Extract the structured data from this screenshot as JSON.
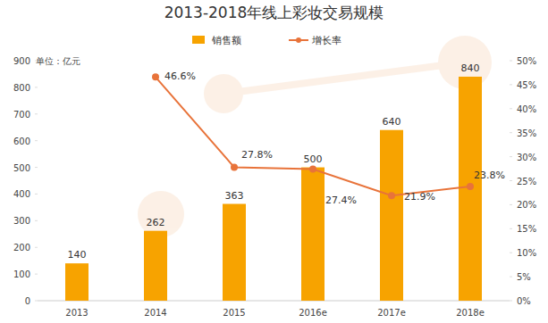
{
  "chart_data": {
    "type": "bar",
    "title": "2013-2018年线上彩妆交易规模",
    "ylabel": "单位：亿元",
    "categories": [
      "2013",
      "2014",
      "2015",
      "2016e",
      "2017e",
      "2018e"
    ],
    "series": [
      {
        "name": "销售额",
        "type": "bar",
        "color": "#f7a300",
        "values": [
          140,
          262,
          363,
          500,
          640,
          840
        ]
      },
      {
        "name": "增长率",
        "type": "line",
        "axis": "y2",
        "color": "#e8733a",
        "marker": "circle",
        "values": [
          null,
          46.6,
          27.8,
          27.4,
          21.9,
          23.8
        ],
        "value_labels": [
          null,
          "46.6%",
          "27.8%",
          "27.4%",
          "21.9%",
          "23.8%"
        ]
      }
    ],
    "ylim": [
      0,
      900
    ],
    "yticks": [
      0,
      100,
      200,
      300,
      400,
      500,
      600,
      700,
      800,
      900
    ],
    "y2lim": [
      0,
      50
    ],
    "y2ticks": [
      {
        "value": 0,
        "label": "0%"
      },
      {
        "value": 5,
        "label": "5%"
      },
      {
        "value": 10,
        "label": "10%"
      },
      {
        "value": 15,
        "label": "15%"
      },
      {
        "value": 20,
        "label": "20%"
      },
      {
        "value": 25,
        "label": "25%"
      },
      {
        "value": 30,
        "label": "30%"
      },
      {
        "value": 35,
        "label": "35%"
      },
      {
        "value": 40,
        "label": "40%"
      },
      {
        "value": 45,
        "label": "45%"
      },
      {
        "value": 50,
        "label": "50%"
      }
    ],
    "grid": false,
    "legend": "top",
    "data_labels": true
  }
}
